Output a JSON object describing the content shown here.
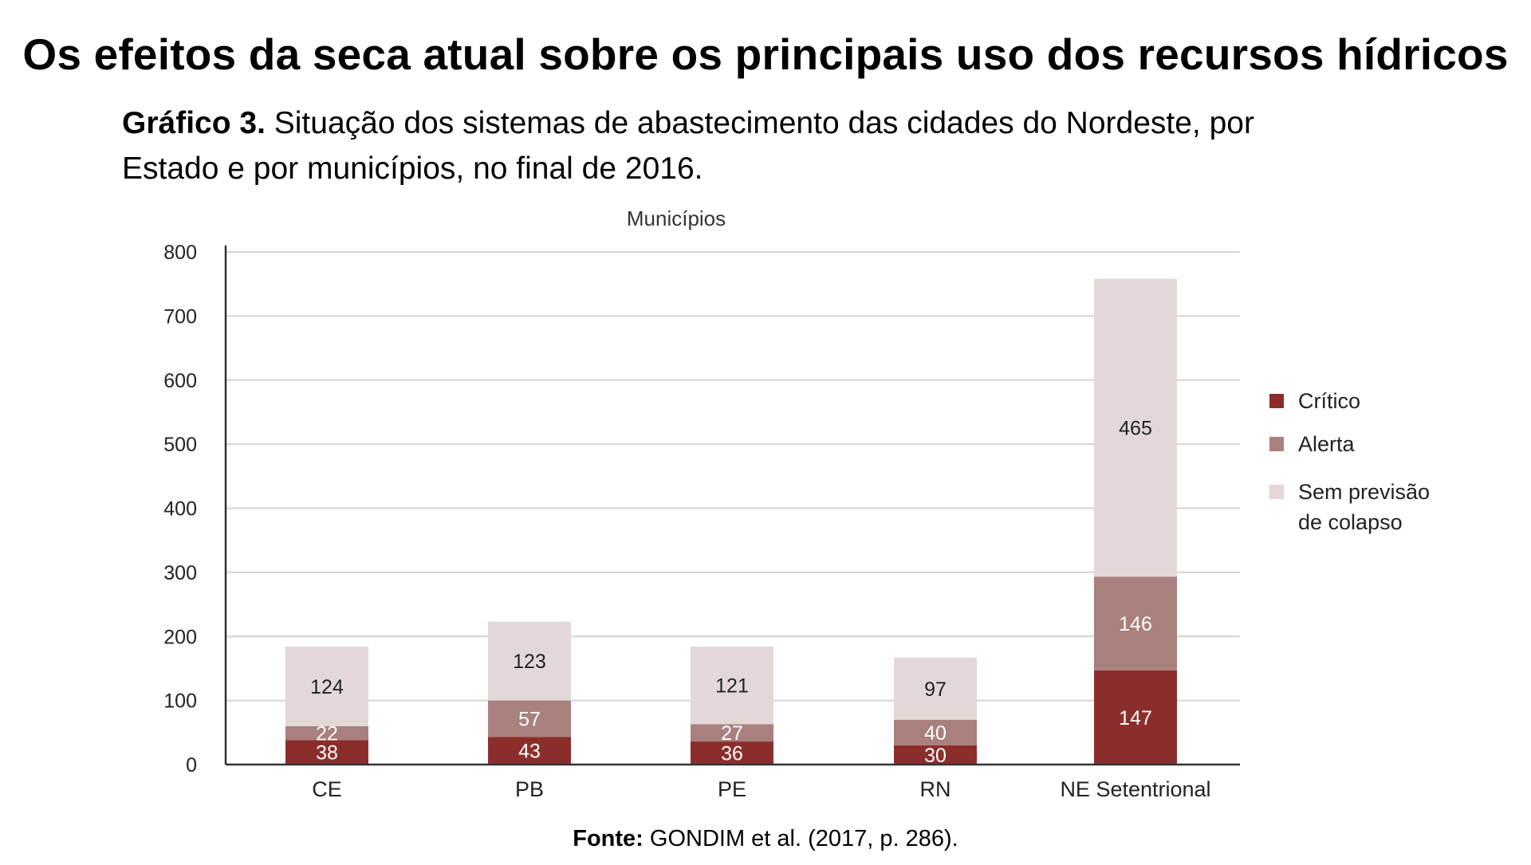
{
  "page": {
    "title": "Os efeitos da seca atual sobre os principais uso dos recursos hídricos",
    "caption_label": "Gráfico 3.",
    "caption_line1": "Situação dos sistemas de abastecimento das cidades do Nordeste, por",
    "caption_line2": "Estado e por municípios, no final de 2016.",
    "source_label": "Fonte:",
    "source_text": "GONDIM et al. (2017, p. 286)."
  },
  "chart_data": {
    "type": "bar",
    "stacked": true,
    "title": "Municípios",
    "categories": [
      "CE",
      "PB",
      "PE",
      "RN",
      "NE Setentrional"
    ],
    "series": [
      {
        "name": "Crítico",
        "values": [
          38,
          43,
          36,
          30,
          147
        ],
        "color": "#8b2e2b",
        "label_color": "#ffffff"
      },
      {
        "name": "Alerta",
        "values": [
          22,
          57,
          27,
          40,
          146
        ],
        "color": "#a9807e",
        "label_color": "#ffffff"
      },
      {
        "name": "Sem previsão de colapso",
        "legend_lines": [
          "Sem previsão",
          "de colapso"
        ],
        "values": [
          124,
          123,
          121,
          97,
          465
        ],
        "color": "#e2d8d7",
        "label_color": "#222222"
      }
    ],
    "ylim": [
      0,
      800
    ],
    "yticks": [
      0,
      100,
      200,
      300,
      400,
      500,
      600,
      700,
      800
    ],
    "grid": true,
    "legend_position": "right",
    "xlabel": "",
    "ylabel": ""
  }
}
